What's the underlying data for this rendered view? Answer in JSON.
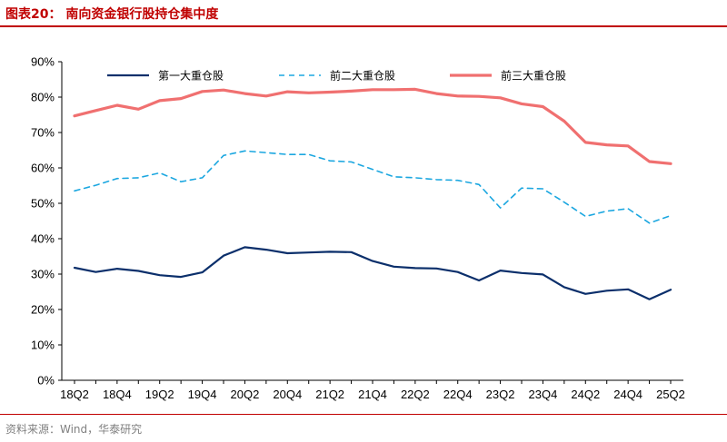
{
  "figure": {
    "title": "图表20：  南向资金银行股持仓集中度",
    "source": "资料来源：Wind，华泰研究"
  },
  "chart_data": {
    "type": "line",
    "title": "",
    "xlabel": "",
    "ylabel": "",
    "ylim": [
      0,
      90
    ],
    "y_ticks": [
      "0%",
      "10%",
      "20%",
      "30%",
      "40%",
      "50%",
      "60%",
      "70%",
      "80%",
      "90%"
    ],
    "x_tick_labels": [
      "18Q2",
      "18Q4",
      "19Q2",
      "19Q4",
      "20Q2",
      "20Q4",
      "21Q2",
      "21Q4",
      "22Q2",
      "22Q4",
      "23Q2",
      "23Q4",
      "24Q2",
      "24Q4",
      "25Q2"
    ],
    "x": [
      "18Q2",
      "18Q3",
      "18Q4",
      "19Q1",
      "19Q2",
      "19Q3",
      "19Q4",
      "20Q1",
      "20Q2",
      "20Q3",
      "20Q4",
      "21Q1",
      "21Q2",
      "21Q3",
      "21Q4",
      "22Q1",
      "22Q2",
      "22Q3",
      "22Q4",
      "23Q1",
      "23Q2",
      "23Q3",
      "23Q4",
      "24Q1",
      "24Q2",
      "24Q3",
      "24Q4",
      "25Q1",
      "25Q2"
    ],
    "legend_position": "top",
    "series": [
      {
        "name": "第一大重仓股",
        "color": "#0b2f6b",
        "style": "solid",
        "values": [
          31.8,
          30.6,
          31.5,
          30.9,
          29.7,
          29.2,
          30.5,
          35.2,
          37.6,
          36.9,
          35.9,
          36.1,
          36.3,
          36.2,
          33.7,
          32.1,
          31.7,
          31.6,
          30.6,
          28.2,
          31.0,
          30.3,
          29.9,
          26.3,
          24.4,
          25.3,
          25.7,
          22.9,
          25.6
        ]
      },
      {
        "name": "前二大重仓股",
        "color": "#1ca7e0",
        "style": "dashed",
        "values": [
          53.5,
          55.1,
          57.0,
          57.2,
          58.6,
          56.1,
          57.2,
          63.5,
          64.8,
          64.3,
          63.8,
          63.8,
          62.0,
          61.7,
          59.6,
          57.5,
          57.2,
          56.7,
          56.5,
          55.3,
          48.7,
          54.3,
          54.1,
          50.3,
          46.3,
          47.8,
          48.5,
          44.4,
          46.5
        ]
      },
      {
        "name": "前三大重仓股",
        "color": "#f07070",
        "style": "solid",
        "values": [
          74.7,
          76.2,
          77.7,
          76.6,
          79.0,
          79.6,
          81.6,
          82.0,
          81.0,
          80.3,
          81.5,
          81.2,
          81.4,
          81.7,
          82.1,
          82.1,
          82.2,
          81.0,
          80.3,
          80.2,
          79.8,
          78.1,
          77.3,
          73.2,
          67.2,
          66.5,
          66.2,
          61.8,
          61.2
        ]
      }
    ]
  }
}
